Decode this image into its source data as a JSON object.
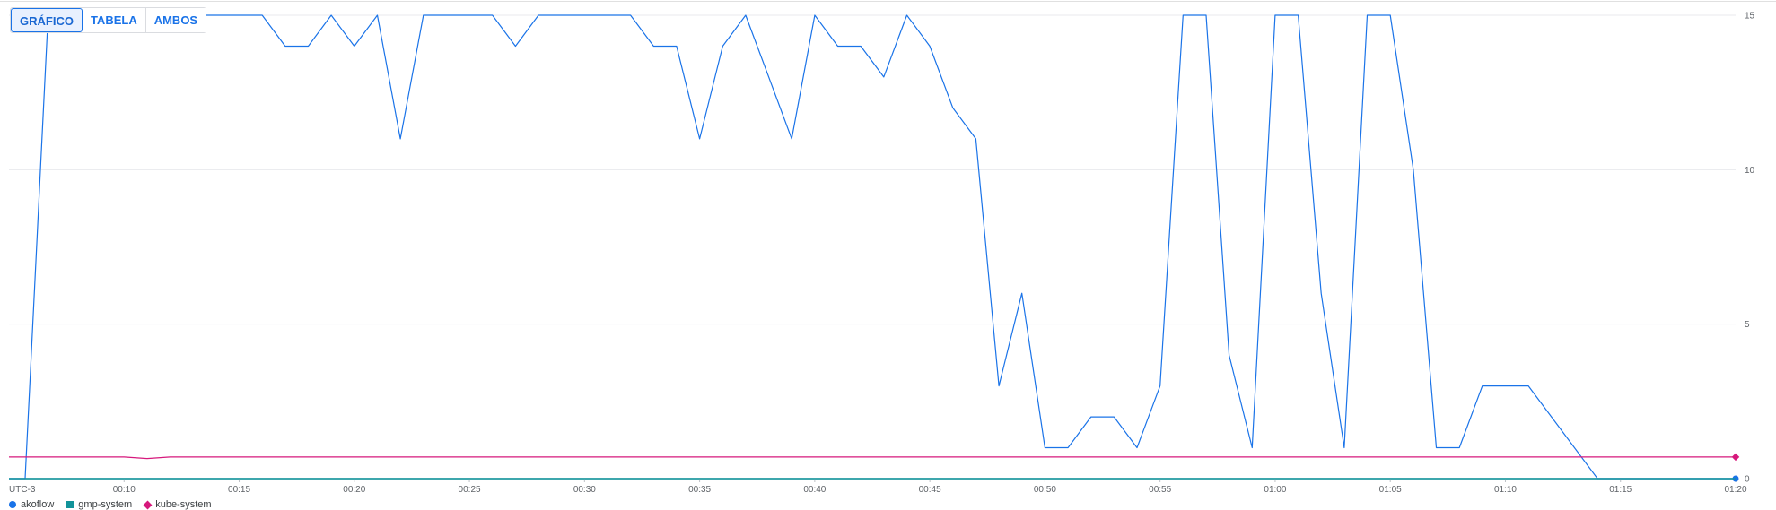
{
  "view_toggle": {
    "options": [
      "GRÁFICO",
      "TABELA",
      "AMBOS"
    ],
    "selected": "GRÁFICO"
  },
  "chart_data": {
    "type": "line",
    "timezone_label": "UTC-3",
    "x_ticks": [
      "00:10",
      "00:15",
      "00:20",
      "00:25",
      "00:30",
      "00:35",
      "00:40",
      "00:45",
      "00:50",
      "00:55",
      "01:00",
      "01:05",
      "01:10",
      "01:15",
      "01:20"
    ],
    "y_ticks": [
      "0",
      "5",
      "10",
      "15"
    ],
    "ylim": [
      0,
      15
    ],
    "xlim_minutes": [
      5,
      80
    ],
    "grid": true,
    "legend_position": "bottom-left",
    "series": [
      {
        "name": "akoflow",
        "color": "#1a73e8",
        "marker": "circle",
        "x_minutes": [
          5,
          5.7,
          6.7,
          7,
          8,
          9,
          10,
          11,
          12,
          13,
          14,
          15,
          16,
          17,
          18,
          19,
          20,
          21,
          22,
          23,
          24,
          25,
          26,
          27,
          28,
          29,
          30,
          31,
          32,
          33,
          34,
          35,
          36,
          37,
          38,
          39,
          40,
          41,
          42,
          43,
          44,
          45,
          46,
          47,
          48,
          49,
          50,
          51,
          52,
          53,
          54,
          55,
          56,
          57,
          58,
          59,
          60,
          61,
          62,
          63,
          64,
          65,
          66,
          67,
          68,
          69,
          70,
          71,
          74,
          75,
          76,
          77,
          78,
          79,
          80
        ],
        "values": [
          0,
          0,
          15,
          15,
          15,
          15,
          15,
          15,
          15,
          15,
          15,
          15,
          15,
          14,
          14,
          15,
          14,
          15,
          11,
          15,
          15,
          15,
          15,
          14,
          15,
          15,
          15,
          15,
          15,
          14,
          14,
          11,
          14,
          15,
          13,
          11,
          15,
          14,
          14,
          13,
          15,
          14,
          12,
          11,
          3,
          6,
          1,
          1,
          2,
          2,
          1,
          3,
          15,
          15,
          4,
          1,
          15,
          15,
          6,
          1,
          15,
          15,
          10,
          1,
          1,
          3,
          3,
          3,
          0,
          0,
          0,
          0,
          0,
          0,
          0
        ]
      },
      {
        "name": "gmp-system",
        "color": "#12939a",
        "marker": "square",
        "x_minutes": [
          5,
          80
        ],
        "values": [
          0,
          0
        ]
      },
      {
        "name": "kube-system",
        "color": "#d6197c",
        "marker": "diamond",
        "x_minutes": [
          5,
          10,
          11,
          12,
          80
        ],
        "values": [
          0.7,
          0.7,
          0.65,
          0.7,
          0.7
        ]
      }
    ]
  }
}
